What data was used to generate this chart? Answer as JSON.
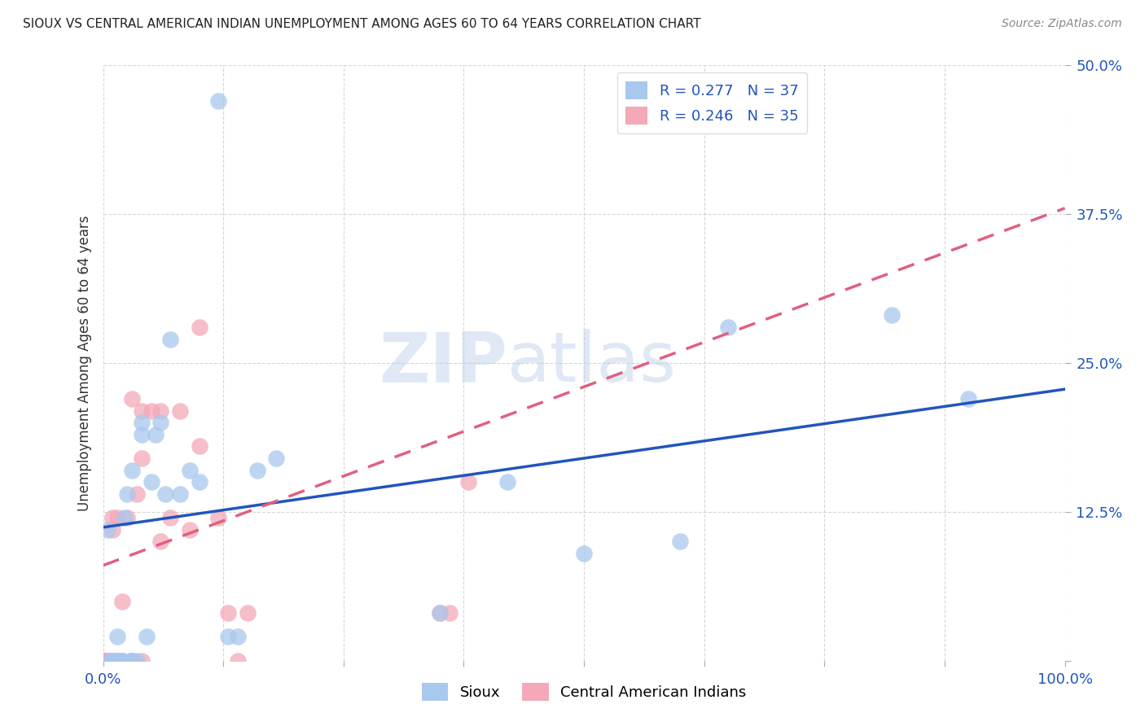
{
  "title": "SIOUX VS CENTRAL AMERICAN INDIAN UNEMPLOYMENT AMONG AGES 60 TO 64 YEARS CORRELATION CHART",
  "source": "Source: ZipAtlas.com",
  "xlabel": "",
  "ylabel": "Unemployment Among Ages 60 to 64 years",
  "xlim": [
    0,
    1.0
  ],
  "ylim": [
    0,
    0.5
  ],
  "xticks": [
    0.0,
    0.125,
    0.25,
    0.375,
    0.5,
    0.625,
    0.75,
    0.875,
    1.0
  ],
  "xticklabels": [
    "0.0%",
    "",
    "",
    "",
    "",
    "",
    "",
    "",
    "100.0%"
  ],
  "yticks": [
    0.0,
    0.125,
    0.25,
    0.375,
    0.5
  ],
  "yticklabels": [
    "",
    "12.5%",
    "25.0%",
    "37.5%",
    "50.0%"
  ],
  "watermark_zip": "ZIP",
  "watermark_atlas": "atlas",
  "legend_text_1": "R = 0.277   N = 37",
  "legend_text_2": "R = 0.246   N = 35",
  "legend_label_1": "Sioux",
  "legend_label_2": "Central American Indians",
  "sioux_color": "#A8C8EE",
  "ca_color": "#F4A8B8",
  "sioux_line_color": "#2255BB",
  "ca_line_color": "#E06080",
  "legend_text_color": "#2255BB",
  "title_color": "#222222",
  "source_color": "#888888",
  "tick_color": "#2255BB",
  "ylabel_color": "#333333",
  "grid_color": "#CCCCCC",
  "sioux_x": [
    0.005,
    0.008,
    0.01,
    0.015,
    0.015,
    0.015,
    0.02,
    0.02,
    0.022,
    0.025,
    0.028,
    0.03,
    0.03,
    0.035,
    0.04,
    0.04,
    0.045,
    0.05,
    0.055,
    0.06,
    0.065,
    0.07,
    0.08,
    0.09,
    0.1,
    0.12,
    0.13,
    0.14,
    0.16,
    0.18,
    0.35,
    0.42,
    0.5,
    0.6,
    0.65,
    0.82,
    0.9
  ],
  "sioux_y": [
    0.11,
    0.0,
    0.0,
    0.0,
    0.0,
    0.02,
    0.0,
    0.0,
    0.12,
    0.14,
    0.0,
    0.0,
    0.16,
    0.0,
    0.19,
    0.2,
    0.02,
    0.15,
    0.19,
    0.2,
    0.14,
    0.27,
    0.14,
    0.16,
    0.15,
    0.47,
    0.02,
    0.02,
    0.16,
    0.17,
    0.04,
    0.15,
    0.09,
    0.1,
    0.28,
    0.29,
    0.22
  ],
  "ca_x": [
    0.0,
    0.0,
    0.0,
    0.0,
    0.005,
    0.005,
    0.01,
    0.01,
    0.01,
    0.015,
    0.015,
    0.02,
    0.02,
    0.025,
    0.03,
    0.03,
    0.035,
    0.04,
    0.04,
    0.04,
    0.05,
    0.06,
    0.06,
    0.07,
    0.08,
    0.09,
    0.1,
    0.1,
    0.12,
    0.13,
    0.14,
    0.15,
    0.35,
    0.36,
    0.38
  ],
  "ca_y": [
    0.0,
    0.0,
    0.0,
    0.0,
    0.0,
    0.0,
    0.0,
    0.11,
    0.12,
    0.0,
    0.12,
    0.0,
    0.05,
    0.12,
    0.0,
    0.22,
    0.14,
    0.0,
    0.17,
    0.21,
    0.21,
    0.1,
    0.21,
    0.12,
    0.21,
    0.11,
    0.18,
    0.28,
    0.12,
    0.04,
    0.0,
    0.04,
    0.04,
    0.04,
    0.15
  ],
  "sioux_line_x0": 0.0,
  "sioux_line_x1": 1.0,
  "sioux_line_y0": 0.112,
  "sioux_line_y1": 0.228,
  "ca_line_x0": 0.0,
  "ca_line_x1": 1.0,
  "ca_line_y0": 0.08,
  "ca_line_y1": 0.38
}
